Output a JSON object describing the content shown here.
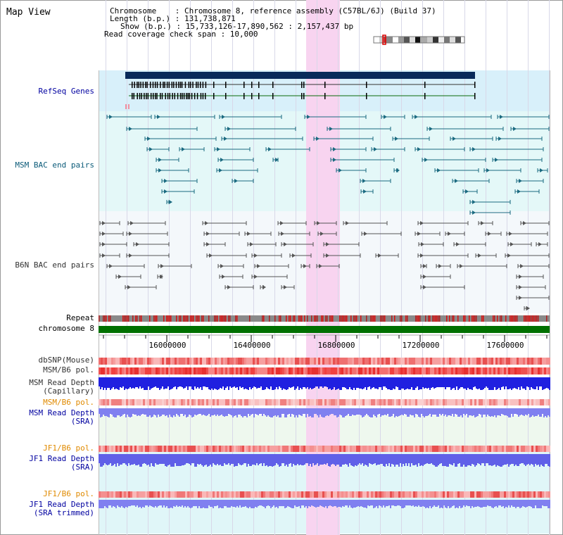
{
  "view_title": "Map View",
  "header": {
    "chromosome_line": "Chromosome    : Chromosome 8, reference assembly (C57BL/6J) (Build 37)",
    "length_line": "Length (b.p.) : 131,738,871",
    "show_line": "Show (b.p.) : 15,733,126-17,890,562 : 2,157,437 bp",
    "coverage_line": "Read coverage check span : 10,000"
  },
  "tracks": {
    "refseq": "RefSeq Genes",
    "msm_bac": "MSM BAC end pairs",
    "b6n_bac": "B6N BAC end pairs",
    "repeat": "Repeat",
    "chromosome": "chromosome 8",
    "dbsnp": "dbSNP(Mouse)",
    "msm_b6_pol_1": "MSM/B6 pol.",
    "msm_depth_cap_1": "MSM Read Depth",
    "msm_depth_cap_2": "(Capillary)",
    "msm_b6_pol_2": "MSM/B6 pol.",
    "msm_depth_sra_1": "MSM Read Depth",
    "msm_depth_sra_2": "(SRA)",
    "jf1_b6_pol_1": "JF1/B6 pol.",
    "jf1_depth_sra_1": "JF1 Read Depth",
    "jf1_depth_sra_2": "(SRA)",
    "jf1_b6_pol_2": "JF1/B6 pol.",
    "jf1_depth_trim_1": "JF1 Read Depth",
    "jf1_depth_trim_2": "(SRA trimmed)"
  },
  "axis_ticks": [
    "16000000",
    "16400000",
    "16800000",
    "17200000",
    "17600000"
  ],
  "colors": {
    "highlight": "#f8d4f0",
    "refseq_bg": "#d8f0fa",
    "msm_bg": "#e4f8f8",
    "chrom_green": "#007000",
    "depth_blue": "#2020e0",
    "depth_light": "#8080f0"
  }
}
